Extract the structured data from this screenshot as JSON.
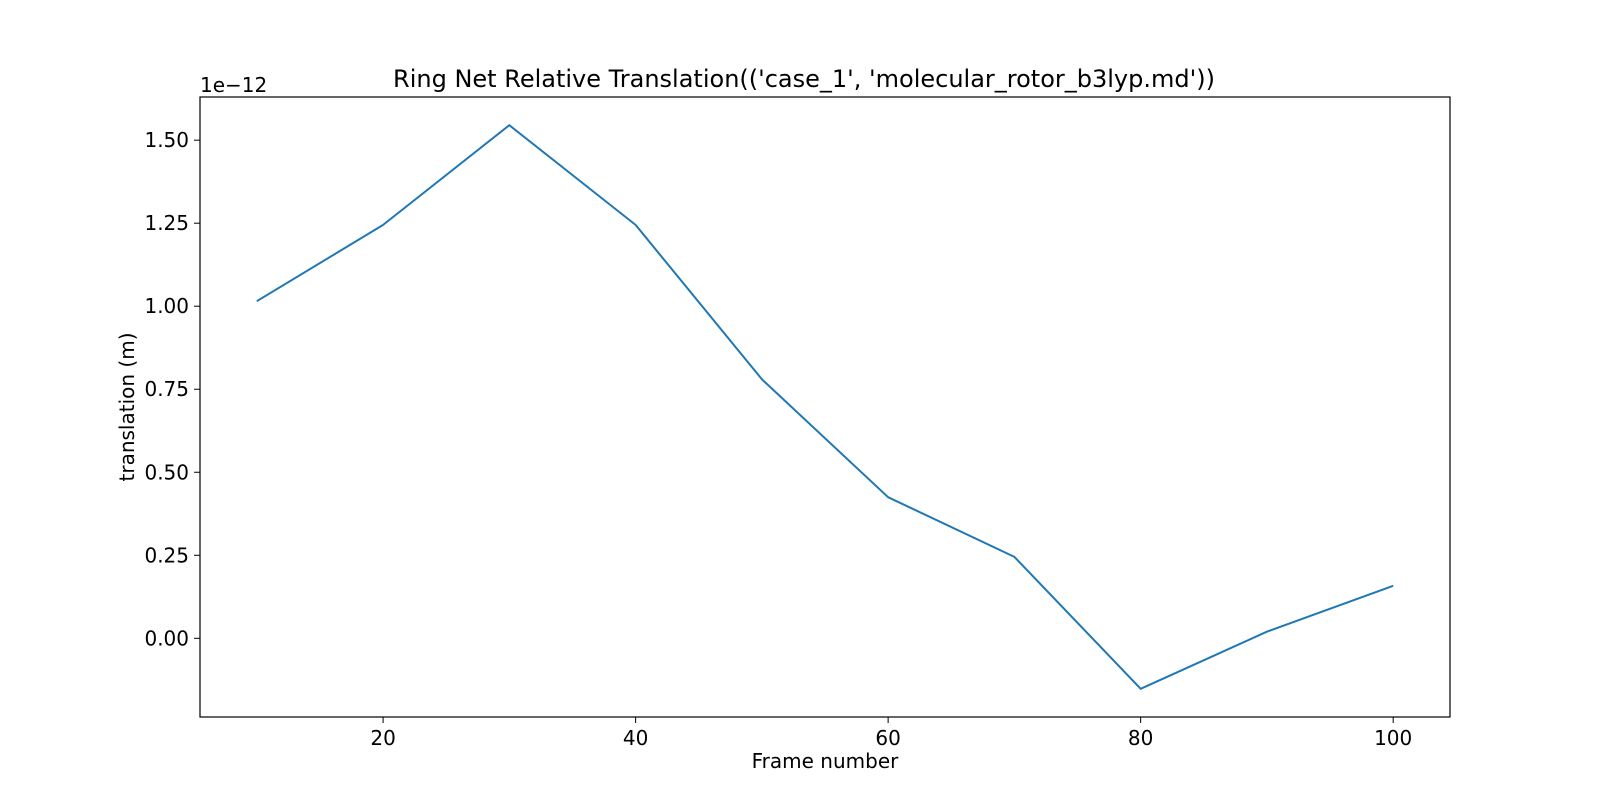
{
  "chart_data": {
    "type": "line",
    "title": "Ring Net Relative Translation(('case_1', 'molecular_rotor_b3lyp.md'))",
    "xlabel": "Frame number",
    "ylabel": "translation (m)",
    "offset_text": "1e−12",
    "x": [
      10,
      20,
      30,
      40,
      50,
      60,
      70,
      80,
      90,
      100
    ],
    "series": [
      {
        "values": [
          1.015,
          1.245,
          1.545,
          1.245,
          0.78,
          0.425,
          0.245,
          -0.152,
          0.02,
          0.158
        ],
        "color": "#1f77b4"
      }
    ],
    "xlim": [
      5.5,
      104.5
    ],
    "ylim": [
      -0.237,
      1.63
    ],
    "xticks": [
      20,
      40,
      60,
      80,
      100
    ],
    "xtick_labels": [
      "20",
      "40",
      "60",
      "80",
      "100"
    ],
    "yticks": [
      0.0,
      0.25,
      0.5,
      0.75,
      1.0,
      1.25,
      1.5
    ],
    "ytick_labels": [
      "0.00",
      "0.25",
      "0.50",
      "0.75",
      "1.00",
      "1.25",
      "1.50"
    ],
    "grid": false,
    "legend": "none"
  }
}
